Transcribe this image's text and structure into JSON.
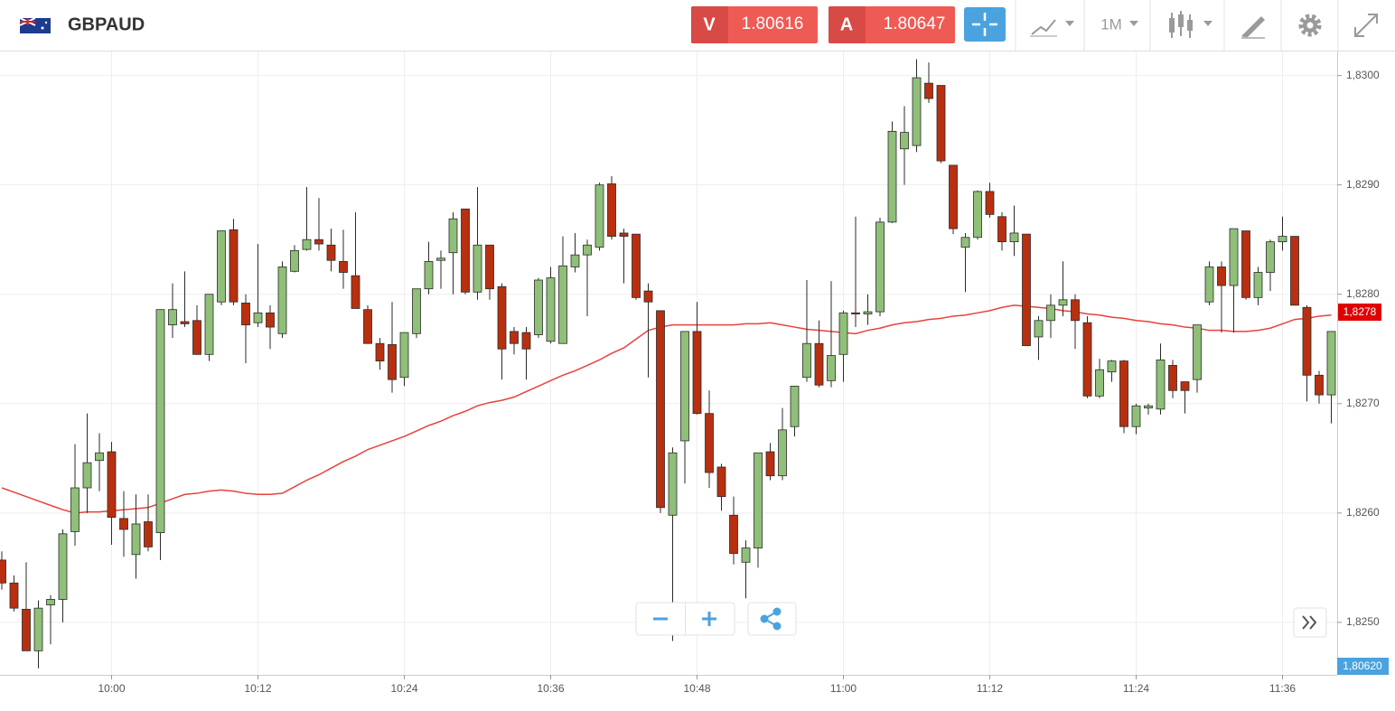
{
  "toolbar": {
    "symbol": "GBPAUD",
    "sell": {
      "label": "V",
      "price": "1.80616"
    },
    "buy": {
      "label": "A",
      "price": "1.80647"
    },
    "timeframe": "1M"
  },
  "price_labels": {
    "last": "1,8278",
    "bid": "1,80620"
  },
  "chart_data": {
    "type": "candlestick",
    "categories": [
      null,
      null,
      null,
      null,
      null,
      null,
      null,
      null,
      null,
      "10:00",
      null,
      null,
      null,
      null,
      null,
      null,
      null,
      null,
      null,
      null,
      null,
      "10:12",
      null,
      null,
      null,
      null,
      null,
      null,
      null,
      null,
      null,
      null,
      null,
      "10:24",
      null,
      null,
      null,
      null,
      null,
      null,
      null,
      null,
      null,
      null,
      null,
      "10:36",
      null,
      null,
      null,
      null,
      null,
      null,
      null,
      null,
      null,
      null,
      null,
      "10:48",
      null,
      null,
      null,
      null,
      null,
      null,
      null,
      null,
      null,
      null,
      null,
      "11:00",
      null,
      null,
      null,
      null,
      null,
      null,
      null,
      null,
      null,
      null,
      null,
      "11:12",
      null,
      null,
      null,
      null,
      null,
      null,
      null,
      null,
      null,
      null,
      null,
      "11:24",
      null,
      null,
      null,
      null,
      null,
      null,
      null,
      null,
      null,
      null,
      null,
      "11:36",
      null,
      null,
      null,
      null
    ],
    "open": [
      1.82557,
      1.82536,
      1.82512,
      1.82474,
      1.82516,
      1.82521,
      1.82583,
      1.82623,
      1.82648,
      1.82656,
      1.82595,
      1.82562,
      1.82592,
      1.82582,
      1.82772,
      1.82775,
      1.82776,
      1.82745,
      1.82793,
      1.82859,
      1.82792,
      1.82774,
      1.82783,
      1.82764,
      1.82821,
      1.82841,
      1.8285,
      1.82845,
      1.8283,
      1.82817,
      1.82786,
      1.82755,
      1.82754,
      1.82724,
      1.82764,
      1.82805,
      1.82831,
      1.82838,
      1.82878,
      1.82802,
      1.82845,
      1.82807,
      1.82766,
      1.82765,
      1.82763,
      1.82757,
      1.82755,
      1.82825,
      1.82836,
      1.82843,
      1.82901,
      1.82856,
      1.82855,
      1.82803,
      1.82785,
      1.82598,
      1.82666,
      1.82766,
      1.82691,
      1.82642,
      1.82598,
      1.82555,
      1.82568,
      1.82656,
      1.82634,
      1.82679,
      1.82724,
      1.82755,
      1.82721,
      1.82745,
      1.82783,
      1.82782,
      1.82784,
      1.82866,
      1.82933,
      1.82936,
      1.82993,
      1.82991,
      1.82918,
      1.82843,
      1.82852,
      1.82894,
      1.82871,
      1.82848,
      1.82855,
      1.82761,
      1.82776,
      1.8279,
      1.82795,
      1.82774,
      1.82707,
      1.82729,
      1.82739,
      1.82679,
      1.82696,
      1.82695,
      1.82735,
      1.8272,
      1.82722,
      1.82793,
      1.82825,
      1.82808,
      1.82858,
      1.82797,
      1.8282,
      1.82848,
      1.82853,
      1.82788,
      1.82726,
      1.82708
    ],
    "high": [
      1.82565,
      1.82543,
      1.82555,
      1.8252,
      1.82525,
      1.82585,
      1.82663,
      1.82691,
      1.82673,
      1.82665,
      1.8262,
      1.82617,
      1.82617,
      1.82786,
      1.8281,
      1.82821,
      1.8279,
      1.828,
      1.82858,
      1.82869,
      1.828,
      1.82846,
      1.8279,
      1.8283,
      1.82845,
      1.82898,
      1.82888,
      1.8286,
      1.82859,
      1.82875,
      1.8279,
      1.8276,
      1.82793,
      1.82765,
      1.82805,
      1.82848,
      1.8284,
      1.82875,
      1.82878,
      1.82898,
      1.82845,
      1.8281,
      1.8277,
      1.8277,
      1.82815,
      1.82825,
      1.82853,
      1.82856,
      1.8285,
      1.82902,
      1.82908,
      1.8286,
      1.82855,
      1.8281,
      1.82785,
      1.8266,
      1.82766,
      1.82793,
      1.82712,
      1.82645,
      1.82615,
      1.82575,
      1.82655,
      1.82664,
      1.82696,
      1.82716,
      1.82813,
      1.82776,
      1.82812,
      1.82785,
      1.82871,
      1.828,
      1.8287,
      1.82958,
      1.82972,
      1.83015,
      1.83012,
      1.82991,
      1.82918,
      1.82856,
      1.82895,
      1.82902,
      1.82875,
      1.82881,
      1.82855,
      1.8278,
      1.828,
      1.8283,
      1.828,
      1.8278,
      1.82741,
      1.8274,
      1.8274,
      1.827,
      1.827,
      1.82755,
      1.8274,
      1.8272,
      1.82772,
      1.8283,
      1.8283,
      1.8286,
      1.82858,
      1.82825,
      1.8285,
      1.82871,
      1.82853,
      1.8279,
      1.8273,
      1.82766
    ],
    "low": [
      1.8253,
      1.8251,
      1.82474,
      1.82458,
      1.8248,
      1.825,
      1.8257,
      1.826,
      1.8262,
      1.82571,
      1.8256,
      1.8254,
      1.82565,
      1.82557,
      1.8276,
      1.8277,
      1.82745,
      1.82739,
      1.8279,
      1.8279,
      1.82737,
      1.8277,
      1.8275,
      1.8276,
      1.8282,
      1.8284,
      1.8284,
      1.82821,
      1.82805,
      1.82787,
      1.82755,
      1.82731,
      1.8271,
      1.82716,
      1.8276,
      1.828,
      1.82805,
      1.828,
      1.828,
      1.82795,
      1.82795,
      1.82722,
      1.82745,
      1.82722,
      1.8276,
      1.82755,
      1.82755,
      1.8282,
      1.8278,
      1.8284,
      1.8285,
      1.8281,
      1.82795,
      1.82724,
      1.826,
      1.82483,
      1.82627,
      1.8269,
      1.82623,
      1.82602,
      1.82553,
      1.82522,
      1.8255,
      1.8263,
      1.8263,
      1.8267,
      1.8272,
      1.82715,
      1.82715,
      1.8272,
      1.8277,
      1.82772,
      1.8278,
      1.82865,
      1.829,
      1.8293,
      1.82975,
      1.8292,
      1.82855,
      1.82802,
      1.8285,
      1.8287,
      1.8284,
      1.82835,
      1.82753,
      1.8274,
      1.8276,
      1.8278,
      1.8275,
      1.82705,
      1.82705,
      1.8272,
      1.82673,
      1.82672,
      1.8269,
      1.8269,
      1.82705,
      1.82691,
      1.8271,
      1.8279,
      1.82765,
      1.82765,
      1.82795,
      1.8279,
      1.82803,
      1.8284,
      1.8279,
      1.82702,
      1.827,
      1.82682
    ],
    "close": [
      1.82536,
      1.82513,
      1.82474,
      1.82513,
      1.82521,
      1.82581,
      1.82623,
      1.82646,
      1.82655,
      1.82596,
      1.82585,
      1.8259,
      1.82569,
      1.82786,
      1.82786,
      1.82773,
      1.82745,
      1.828,
      1.82858,
      1.82793,
      1.82772,
      1.82783,
      1.8277,
      1.82825,
      1.8284,
      1.8285,
      1.82846,
      1.82831,
      1.8282,
      1.82787,
      1.82755,
      1.82739,
      1.82722,
      1.82765,
      1.82805,
      1.8283,
      1.82833,
      1.82869,
      1.82802,
      1.82845,
      1.82805,
      1.8275,
      1.82755,
      1.8275,
      1.82813,
      1.82815,
      1.82826,
      1.82836,
      1.82845,
      1.829,
      1.82853,
      1.82853,
      1.82797,
      1.82793,
      1.82605,
      1.82655,
      1.82766,
      1.82691,
      1.82637,
      1.82615,
      1.82563,
      1.82568,
      1.82655,
      1.82634,
      1.82676,
      1.82716,
      1.82755,
      1.82717,
      1.82744,
      1.82783,
      1.82782,
      1.82784,
      1.82866,
      1.82949,
      1.82948,
      1.82998,
      1.82979,
      1.82922,
      1.8286,
      1.82852,
      1.82894,
      1.82873,
      1.82848,
      1.82856,
      1.82753,
      1.82776,
      1.8279,
      1.82795,
      1.82776,
      1.82707,
      1.82731,
      1.82739,
      1.82679,
      1.82698,
      1.82698,
      1.8274,
      1.82712,
      1.82712,
      1.82772,
      1.82825,
      1.82808,
      1.8286,
      1.82797,
      1.8282,
      1.82848,
      1.82853,
      1.8279,
      1.82726,
      1.82708,
      1.82766
    ],
    "colors": {
      "up": "#8fbf78",
      "down": "#b8300f",
      "outline": "#2b2b2b"
    },
    "ma": {
      "color": "#e8413c",
      "values": [
        1.82623,
        1.82619,
        1.82615,
        1.82611,
        1.82607,
        1.82603,
        1.826,
        1.82601,
        1.82601,
        1.82602,
        1.82603,
        1.82604,
        1.82605,
        1.82609,
        1.82613,
        1.82617,
        1.82618,
        1.8262,
        1.82621,
        1.8262,
        1.82618,
        1.82617,
        1.82617,
        1.82618,
        1.82624,
        1.8263,
        1.82635,
        1.82641,
        1.82647,
        1.82652,
        1.82658,
        1.82662,
        1.82666,
        1.8267,
        1.82675,
        1.8268,
        1.82684,
        1.82689,
        1.82693,
        1.82698,
        1.82701,
        1.82703,
        1.82706,
        1.82711,
        1.82716,
        1.82721,
        1.82726,
        1.8273,
        1.82735,
        1.8274,
        1.82746,
        1.82751,
        1.82759,
        1.82767,
        1.8277,
        1.82772,
        1.82772,
        1.82772,
        1.82772,
        1.82772,
        1.82772,
        1.82773,
        1.82773,
        1.82774,
        1.82772,
        1.8277,
        1.82768,
        1.82767,
        1.82766,
        1.82765,
        1.82764,
        1.82767,
        1.82769,
        1.82772,
        1.82774,
        1.82775,
        1.82777,
        1.82778,
        1.8278,
        1.82781,
        1.82783,
        1.82785,
        1.82788,
        1.8279,
        1.82789,
        1.82788,
        1.82787,
        1.82785,
        1.82784,
        1.82782,
        1.82781,
        1.82779,
        1.82778,
        1.82776,
        1.82775,
        1.82773,
        1.82772,
        1.8277,
        1.82769,
        1.82767,
        1.82767,
        1.82766,
        1.82766,
        1.82767,
        1.82769,
        1.82773,
        1.82777,
        1.82778,
        1.8278,
        1.82781
      ]
    },
    "ylim": [
      1.82452,
      1.83022
    ],
    "yticks": [
      {
        "value": 1.83,
        "label": "1,8300"
      },
      {
        "value": 1.829,
        "label": "1,8290"
      },
      {
        "value": 1.828,
        "label": "1,8280"
      },
      {
        "value": 1.827,
        "label": "1,8270"
      },
      {
        "value": 1.826,
        "label": "1,8260"
      },
      {
        "value": 1.825,
        "label": "1,8250"
      }
    ],
    "grid": true
  }
}
